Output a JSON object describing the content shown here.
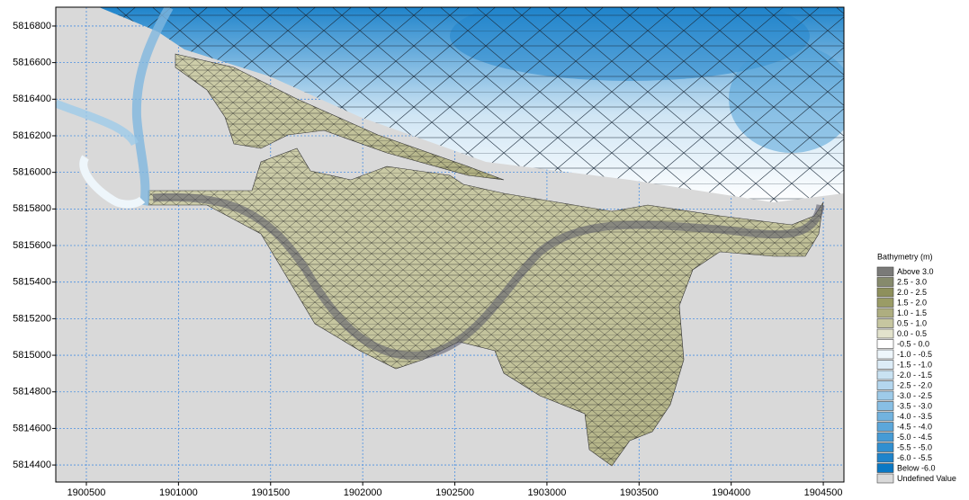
{
  "chart_data": {
    "type": "mesh",
    "xlim": [
      1900334,
      1904612
    ],
    "ylim": [
      5814307,
      5816903
    ],
    "xticks": [
      1900500,
      1901000,
      1901500,
      1902000,
      1902500,
      1903000,
      1903500,
      1904000,
      1904500
    ],
    "yticks": [
      5814400,
      5814600,
      5814800,
      5815000,
      5815200,
      5815400,
      5815600,
      5815800,
      5816000,
      5816200,
      5816400,
      5816600,
      5816800
    ],
    "grid": true,
    "grid_color": "#4a90e2",
    "background_color": "#d9d9d9",
    "legend": {
      "title": "Bathymetry (m)",
      "items": [
        {
          "label": "Above  3.0",
          "color": "#7a7a78"
        },
        {
          "label": "2.5 -  3.0",
          "color": "#868a6c"
        },
        {
          "label": "2.0 -  2.5",
          "color": "#8e905c"
        },
        {
          "label": "1.5 -  2.0",
          "color": "#9a9c66"
        },
        {
          "label": "1.0 -  1.5",
          "color": "#aeae80"
        },
        {
          "label": "0.5 -  1.0",
          "color": "#c6c6a0"
        },
        {
          "label": "0.0 -  0.5",
          "color": "#e2e2cc"
        },
        {
          "label": "-0.5 -  0.0",
          "color": "#ffffff"
        },
        {
          "label": "-1.0 - -0.5",
          "color": "#eef6fb"
        },
        {
          "label": "-1.5 - -1.0",
          "color": "#dcecf7"
        },
        {
          "label": "-2.0 - -1.5",
          "color": "#c9e2f2"
        },
        {
          "label": "-2.5 - -2.0",
          "color": "#b4d6ee"
        },
        {
          "label": "-3.0 - -2.5",
          "color": "#9ecbe9"
        },
        {
          "label": "-3.5 - -3.0",
          "color": "#88bfe4"
        },
        {
          "label": "-4.0 - -3.5",
          "color": "#72b3df"
        },
        {
          "label": "-4.5 - -4.0",
          "color": "#5ca7da"
        },
        {
          "label": "-5.0 - -4.5",
          "color": "#469bd5"
        },
        {
          "label": "-5.5 - -5.0",
          "color": "#308fd0"
        },
        {
          "label": "-6.0 - -5.5",
          "color": "#1f84cb"
        },
        {
          "label": "Below -6.0",
          "color": "#0a78c4"
        },
        {
          "label": "Undefined Value",
          "color": "#d9d9d9"
        }
      ]
    }
  }
}
